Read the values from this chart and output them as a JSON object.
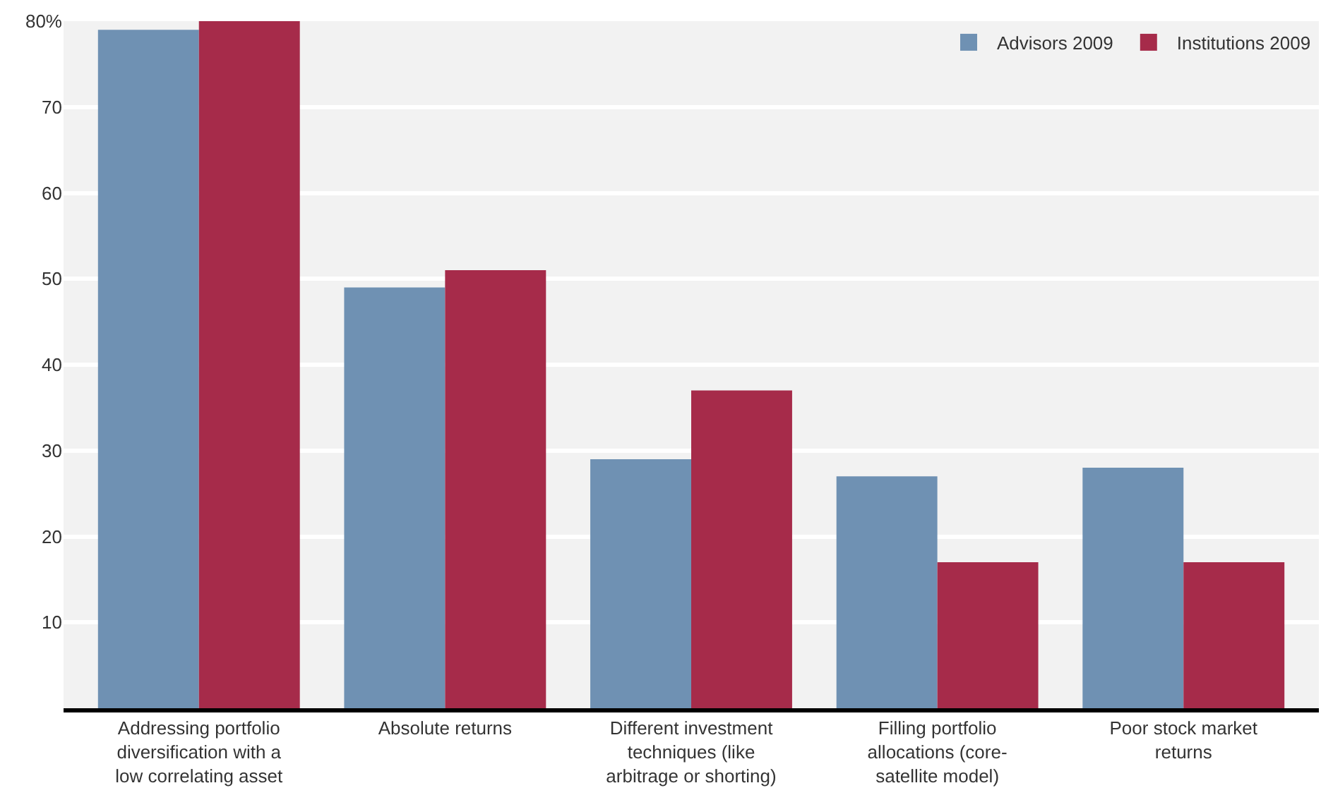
{
  "chart_data": {
    "type": "bar",
    "categories": [
      "Addressing portfolio diversification with a low correlating asset",
      "Absolute returns",
      "Different investment techniques (like arbitrage or shorting)",
      "Filling portfolio allocations (core-satellite model)",
      "Poor stock market returns"
    ],
    "series": [
      {
        "name": "Advisors 2009",
        "color": "#6f91b3",
        "values": [
          79,
          49,
          29,
          27,
          28
        ]
      },
      {
        "name": "Institutions 2009",
        "color": "#a62b4a",
        "values": [
          80,
          51,
          37,
          17,
          17
        ]
      }
    ],
    "ylim": [
      0,
      80
    ],
    "yticks": [
      {
        "value": 10,
        "label": "10"
      },
      {
        "value": 20,
        "label": "20"
      },
      {
        "value": 30,
        "label": "30"
      },
      {
        "value": 40,
        "label": "40"
      },
      {
        "value": 50,
        "label": "50"
      },
      {
        "value": 60,
        "label": "60"
      },
      {
        "value": 70,
        "label": "70"
      },
      {
        "value": 80,
        "label": "80%"
      }
    ],
    "grid": "y",
    "legend": "top right"
  }
}
